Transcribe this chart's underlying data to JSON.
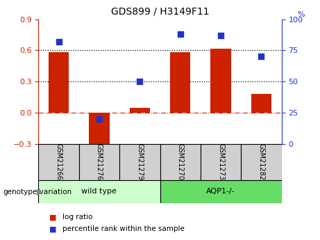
{
  "title": "GDS899 / H3149F11",
  "categories": [
    "GSM21266",
    "GSM21276",
    "GSM21279",
    "GSM21270",
    "GSM21273",
    "GSM21282"
  ],
  "log_ratio": [
    0.585,
    -0.32,
    0.05,
    0.585,
    0.615,
    0.18
  ],
  "percentile_rank": [
    82,
    20,
    50,
    88,
    87,
    70
  ],
  "bar_color": "#cc2200",
  "dot_color": "#2233cc",
  "ylim_left": [
    -0.3,
    0.9
  ],
  "ylim_right": [
    0,
    100
  ],
  "yticks_left": [
    -0.3,
    0.0,
    0.3,
    0.6,
    0.9
  ],
  "yticks_right": [
    0,
    25,
    50,
    75,
    100
  ],
  "hlines": [
    0.6,
    0.3
  ],
  "wild_type_indices": [
    0,
    1,
    2
  ],
  "aqp1_indices": [
    3,
    4,
    5
  ],
  "wild_type_label": "wild type",
  "aqp1_label": "AQP1-/-",
  "genotype_label": "genotype/variation",
  "legend_log_ratio": "log ratio",
  "legend_percentile": "percentile rank within the sample",
  "wild_type_color": "#ccffcc",
  "aqp1_color": "#66dd66",
  "sample_box_color": "#d0d0d0",
  "right_axis_color": "#2233cc",
  "left_axis_color": "#cc2200",
  "bar_width": 0.5,
  "dot_size": 30
}
